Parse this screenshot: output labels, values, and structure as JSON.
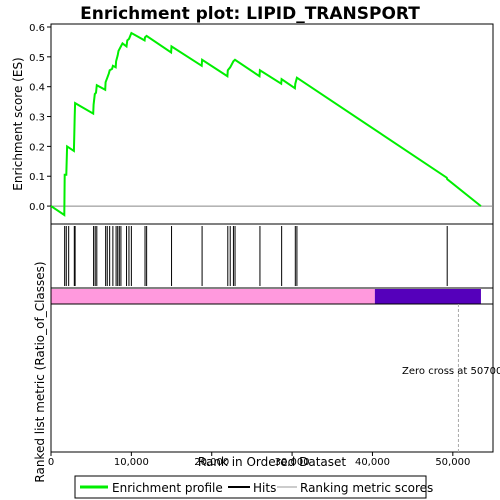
{
  "chart_data": {
    "type": "line",
    "title": "Enrichment plot: LIPID_TRANSPORT",
    "ylabel_top": "Enrichment score (ES)",
    "ylabel_bottom": "Ranked list metric (Ratio_of_Classes)",
    "xlabel": "Rank in Ordered Dataset",
    "xlim": [
      0,
      55000
    ],
    "ylim": [
      -0.06,
      0.61
    ],
    "yticks": [
      "0.0",
      "0.1",
      "0.2",
      "0.3",
      "0.4",
      "0.5",
      "0.6"
    ],
    "ytick_values": [
      0.0,
      0.1,
      0.2,
      0.3,
      0.4,
      0.5,
      0.6
    ],
    "xticks": [
      "0",
      "10,000",
      "20,000",
      "30,000",
      "40,000",
      "50,000"
    ],
    "xtick_values": [
      0,
      10000,
      20000,
      30000,
      40000,
      50000
    ],
    "zero_cross_label": "Zero cross at 50700",
    "zero_cross_x": 50700,
    "dataset_size": 53500,
    "positive_end": 40300,
    "hits": [
      1700,
      1900,
      2200,
      2900,
      3000,
      5300,
      5500,
      5700,
      6800,
      7000,
      7300,
      7700,
      8100,
      8300,
      8500,
      8700,
      9400,
      9700,
      10000,
      11700,
      11900,
      15000,
      18800,
      22000,
      22300,
      22700,
      22900,
      26000,
      28700,
      30400,
      30600,
      49300
    ],
    "es_points": [
      [
        0,
        0.0
      ],
      [
        1650,
        -0.03
      ],
      [
        1700,
        0.105
      ],
      [
        1900,
        0.105
      ],
      [
        2000,
        0.2
      ],
      [
        2850,
        0.185
      ],
      [
        2900,
        0.24
      ],
      [
        2950,
        0.3
      ],
      [
        3000,
        0.345
      ],
      [
        5250,
        0.31
      ],
      [
        5300,
        0.34
      ],
      [
        5450,
        0.375
      ],
      [
        5600,
        0.38
      ],
      [
        5700,
        0.405
      ],
      [
        6750,
        0.39
      ],
      [
        6800,
        0.415
      ],
      [
        7000,
        0.43
      ],
      [
        7200,
        0.445
      ],
      [
        7300,
        0.455
      ],
      [
        7600,
        0.46
      ],
      [
        7700,
        0.47
      ],
      [
        8050,
        0.465
      ],
      [
        8100,
        0.485
      ],
      [
        8300,
        0.505
      ],
      [
        8400,
        0.52
      ],
      [
        8700,
        0.535
      ],
      [
        8900,
        0.545
      ],
      [
        9400,
        0.535
      ],
      [
        9500,
        0.555
      ],
      [
        9700,
        0.56
      ],
      [
        10000,
        0.58
      ],
      [
        11650,
        0.555
      ],
      [
        11700,
        0.565
      ],
      [
        11900,
        0.57
      ],
      [
        14950,
        0.515
      ],
      [
        15000,
        0.535
      ],
      [
        18750,
        0.47
      ],
      [
        18800,
        0.49
      ],
      [
        21950,
        0.435
      ],
      [
        22000,
        0.455
      ],
      [
        22300,
        0.465
      ],
      [
        22700,
        0.485
      ],
      [
        22900,
        0.49
      ],
      [
        25950,
        0.435
      ],
      [
        26000,
        0.455
      ],
      [
        28650,
        0.41
      ],
      [
        28700,
        0.425
      ],
      [
        30350,
        0.395
      ],
      [
        30400,
        0.41
      ],
      [
        30600,
        0.43
      ],
      [
        49250,
        0.095
      ],
      [
        49300,
        0.09
      ],
      [
        53500,
        0.0
      ]
    ],
    "colors": {
      "es_line": "#00ee00",
      "hit": "#000000",
      "positive_metric": "#ff99dd",
      "negative_metric": "#5500bb",
      "zero_line": "#888888",
      "zero_cross_line": "#aaaaaa",
      "frame": "#000000"
    },
    "legend": {
      "placement": "bottom",
      "items": [
        "Enrichment profile",
        "Hits",
        "Ranking metric scores"
      ]
    }
  }
}
